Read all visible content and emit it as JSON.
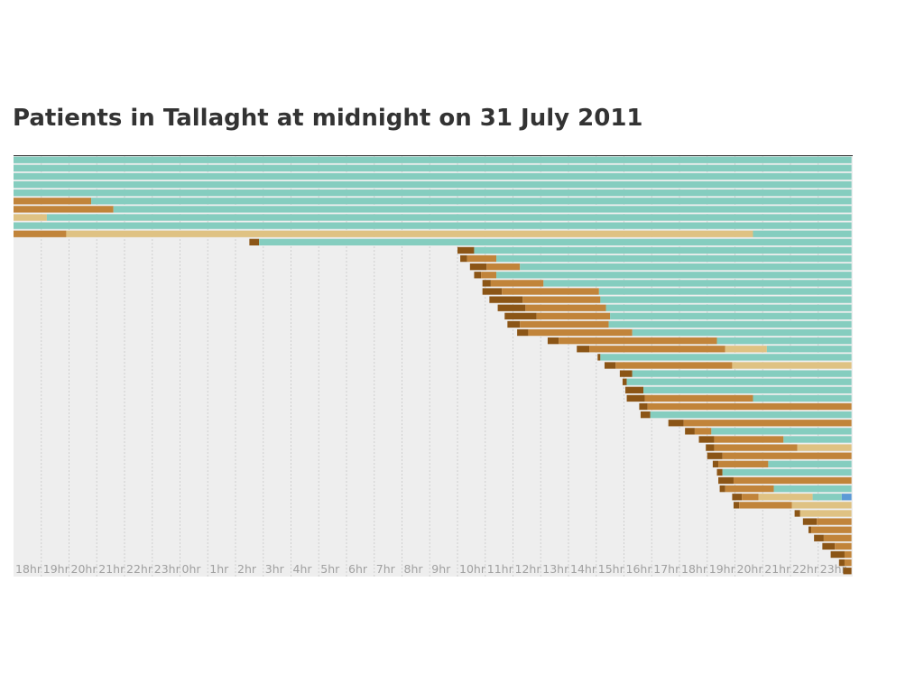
{
  "page": {
    "title": "Patients in Tallaght at midnight on 31 July 2011"
  },
  "chart_data": {
    "type": "bar",
    "orientation": "horizontal-timeline",
    "title": "Patients in Tallaght at midnight on 31 July 2011",
    "xlabel": "",
    "ylabel": "",
    "grid": true,
    "x_ticks": [
      "18hr",
      "19hr",
      "20hr",
      "21hr",
      "22hr",
      "23hr",
      "0hr",
      "1hr",
      "2hr",
      "3hr",
      "4hr",
      "5hr",
      "6hr",
      "7hr",
      "8hr",
      "9hr",
      "10hr",
      "11hr",
      "12hr",
      "13hr",
      "14hr",
      "15hr",
      "16hr",
      "17hr",
      "18hr",
      "19hr",
      "20hr",
      "21hr",
      "22hr",
      "23hr"
    ],
    "x_range_hours": [
      18,
      48.2
    ],
    "colors": {
      "stage1": "#8b5516",
      "stage2": "#c1843a",
      "stage3": "#dfc283",
      "stage4": "#85cdbf",
      "stage5": "#5b9ad6"
    },
    "rows": [
      [
        [
          18,
          48.2,
          "stage4"
        ]
      ],
      [
        [
          18,
          48.2,
          "stage4"
        ]
      ],
      [
        [
          18,
          48.2,
          "stage4"
        ]
      ],
      [
        [
          18,
          48.2,
          "stage4"
        ]
      ],
      [
        [
          18,
          48.2,
          "stage4"
        ]
      ],
      [
        [
          18,
          20.8,
          "stage2"
        ],
        [
          20.8,
          48.2,
          "stage4"
        ]
      ],
      [
        [
          18,
          21.6,
          "stage2"
        ],
        [
          21.6,
          48.2,
          "stage4"
        ]
      ],
      [
        [
          18,
          19.2,
          "stage3"
        ],
        [
          19.2,
          48.2,
          "stage4"
        ]
      ],
      [
        [
          18,
          48.2,
          "stage4"
        ]
      ],
      [
        [
          18,
          19.9,
          "stage2"
        ],
        [
          19.9,
          44.65,
          "stage3"
        ],
        [
          44.65,
          48.2,
          "stage4"
        ]
      ],
      [
        [
          26.5,
          26.85,
          "stage1"
        ],
        [
          26.85,
          48.2,
          "stage4"
        ]
      ],
      [
        [
          34.0,
          34.6,
          "stage1"
        ],
        [
          34.6,
          48.2,
          "stage4"
        ]
      ],
      [
        [
          34.1,
          34.35,
          "stage1"
        ],
        [
          34.35,
          35.4,
          "stage2"
        ],
        [
          35.4,
          48.2,
          "stage4"
        ]
      ],
      [
        [
          34.45,
          35.05,
          "stage1"
        ],
        [
          35.05,
          36.25,
          "stage2"
        ],
        [
          36.25,
          48.2,
          "stage4"
        ]
      ],
      [
        [
          34.6,
          34.85,
          "stage1"
        ],
        [
          34.85,
          35.4,
          "stage2"
        ],
        [
          35.4,
          48.2,
          "stage4"
        ]
      ],
      [
        [
          34.9,
          35.2,
          "stage1"
        ],
        [
          35.2,
          37.1,
          "stage2"
        ],
        [
          37.1,
          48.2,
          "stage4"
        ]
      ],
      [
        [
          34.9,
          35.6,
          "stage1"
        ],
        [
          35.6,
          39.1,
          "stage2"
        ],
        [
          39.1,
          48.2,
          "stage4"
        ]
      ],
      [
        [
          35.15,
          36.35,
          "stage1"
        ],
        [
          36.35,
          39.15,
          "stage2"
        ],
        [
          39.15,
          48.2,
          "stage4"
        ]
      ],
      [
        [
          35.45,
          36.45,
          "stage1"
        ],
        [
          36.45,
          39.35,
          "stage2"
        ],
        [
          39.35,
          48.2,
          "stage4"
        ]
      ],
      [
        [
          35.7,
          36.85,
          "stage1"
        ],
        [
          36.85,
          39.5,
          "stage2"
        ],
        [
          39.5,
          48.2,
          "stage4"
        ]
      ],
      [
        [
          35.8,
          36.25,
          "stage1"
        ],
        [
          36.25,
          39.45,
          "stage2"
        ],
        [
          39.45,
          48.2,
          "stage4"
        ]
      ],
      [
        [
          36.15,
          36.55,
          "stage1"
        ],
        [
          36.55,
          40.3,
          "stage2"
        ],
        [
          40.3,
          48.2,
          "stage4"
        ]
      ],
      [
        [
          37.25,
          37.65,
          "stage1"
        ],
        [
          37.65,
          43.35,
          "stage2"
        ],
        [
          43.35,
          48.2,
          "stage4"
        ]
      ],
      [
        [
          38.3,
          38.75,
          "stage1"
        ],
        [
          38.75,
          43.65,
          "stage2"
        ],
        [
          43.65,
          45.15,
          "stage3"
        ],
        [
          45.15,
          48.2,
          "stage4"
        ]
      ],
      [
        [
          39.05,
          39.15,
          "stage1"
        ],
        [
          39.15,
          48.2,
          "stage4"
        ]
      ],
      [
        [
          39.3,
          39.7,
          "stage1"
        ],
        [
          39.7,
          43.9,
          "stage2"
        ],
        [
          43.9,
          48.2,
          "stage3"
        ]
      ],
      [
        [
          39.85,
          40.3,
          "stage1"
        ],
        [
          40.3,
          48.2,
          "stage4"
        ]
      ],
      [
        [
          39.95,
          40.1,
          "stage1"
        ],
        [
          40.1,
          48.2,
          "stage4"
        ]
      ],
      [
        [
          40.05,
          40.7,
          "stage1"
        ],
        [
          40.7,
          48.2,
          "stage4"
        ]
      ],
      [
        [
          40.1,
          40.75,
          "stage1"
        ],
        [
          40.75,
          44.65,
          "stage2"
        ],
        [
          44.65,
          48.2,
          "stage4"
        ]
      ],
      [
        [
          40.55,
          40.85,
          "stage1"
        ],
        [
          40.85,
          48.2,
          "stage2"
        ]
      ],
      [
        [
          40.6,
          40.95,
          "stage1"
        ],
        [
          40.95,
          48.2,
          "stage4"
        ]
      ],
      [
        [
          41.6,
          42.15,
          "stage1"
        ],
        [
          42.15,
          48.2,
          "stage2"
        ]
      ],
      [
        [
          42.2,
          42.55,
          "stage1"
        ],
        [
          42.55,
          43.15,
          "stage2"
        ],
        [
          43.15,
          48.2,
          "stage4"
        ]
      ],
      [
        [
          42.7,
          43.25,
          "stage1"
        ],
        [
          43.25,
          45.75,
          "stage2"
        ],
        [
          45.75,
          48.2,
          "stage4"
        ]
      ],
      [
        [
          42.95,
          43.25,
          "stage1"
        ],
        [
          43.25,
          46.25,
          "stage2"
        ],
        [
          46.25,
          48.2,
          "stage3"
        ]
      ],
      [
        [
          43.0,
          43.55,
          "stage1"
        ],
        [
          43.55,
          48.2,
          "stage2"
        ]
      ],
      [
        [
          43.2,
          43.4,
          "stage1"
        ],
        [
          43.4,
          45.2,
          "stage2"
        ],
        [
          45.2,
          48.2,
          "stage4"
        ]
      ],
      [
        [
          43.35,
          43.55,
          "stage1"
        ],
        [
          43.55,
          48.2,
          "stage4"
        ]
      ],
      [
        [
          43.4,
          43.95,
          "stage1"
        ],
        [
          43.95,
          48.2,
          "stage2"
        ]
      ],
      [
        [
          43.45,
          43.65,
          "stage1"
        ],
        [
          43.65,
          45.4,
          "stage2"
        ],
        [
          45.4,
          48.2,
          "stage4"
        ]
      ],
      [
        [
          43.9,
          44.25,
          "stage1"
        ],
        [
          44.25,
          44.85,
          "stage2"
        ],
        [
          44.85,
          46.8,
          "stage3"
        ],
        [
          46.8,
          47.85,
          "stage4"
        ],
        [
          47.85,
          48.2,
          "stage5"
        ]
      ],
      [
        [
          43.95,
          44.15,
          "stage1"
        ],
        [
          44.15,
          46.05,
          "stage2"
        ],
        [
          46.05,
          48.2,
          "stage3"
        ]
      ],
      [
        [
          46.15,
          46.35,
          "stage1"
        ],
        [
          46.35,
          48.2,
          "stage3"
        ]
      ],
      [
        [
          46.45,
          46.95,
          "stage1"
        ],
        [
          46.95,
          48.2,
          "stage2"
        ]
      ],
      [
        [
          46.65,
          46.75,
          "stage1"
        ],
        [
          46.75,
          48.2,
          "stage2"
        ]
      ],
      [
        [
          46.85,
          47.2,
          "stage1"
        ],
        [
          47.2,
          48.2,
          "stage2"
        ]
      ],
      [
        [
          47.15,
          47.6,
          "stage1"
        ],
        [
          47.6,
          48.2,
          "stage2"
        ]
      ],
      [
        [
          47.45,
          47.95,
          "stage1"
        ],
        [
          47.95,
          48.2,
          "stage2"
        ]
      ],
      [
        [
          47.75,
          47.95,
          "stage1"
        ],
        [
          47.95,
          48.2,
          "stage2"
        ]
      ],
      [
        [
          47.9,
          48.2,
          "stage1"
        ]
      ]
    ]
  }
}
